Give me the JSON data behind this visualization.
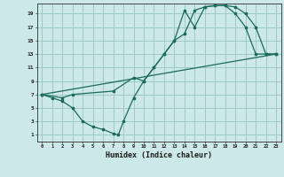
{
  "xlabel": "Humidex (Indice chaleur)",
  "bg_color": "#cce8e8",
  "grid_color": "#9ec8c8",
  "line_color": "#1a6b5a",
  "xlim": [
    -0.5,
    23.5
  ],
  "ylim": [
    0,
    20.5
  ],
  "xticks": [
    0,
    1,
    2,
    3,
    4,
    5,
    6,
    7,
    8,
    9,
    10,
    11,
    12,
    13,
    14,
    15,
    16,
    17,
    18,
    19,
    20,
    21,
    22,
    23
  ],
  "yticks": [
    1,
    3,
    5,
    7,
    9,
    11,
    13,
    15,
    17,
    19
  ],
  "line1_x": [
    0,
    1,
    2,
    3,
    4,
    5,
    6,
    7,
    7.5,
    8,
    9,
    10,
    11,
    12,
    13,
    14,
    15,
    16,
    17,
    18,
    19,
    20,
    21,
    22,
    23
  ],
  "line1_y": [
    7,
    6.5,
    6,
    5,
    3,
    2.2,
    1.8,
    1.2,
    1.0,
    3.0,
    6.5,
    9,
    11,
    13,
    15,
    19.5,
    17,
    20,
    20.2,
    20.2,
    19,
    17,
    13,
    13,
    13
  ],
  "line2_x": [
    0,
    2,
    3,
    7,
    9,
    10,
    11,
    12,
    13,
    14,
    15,
    16,
    17,
    18,
    19,
    20,
    21,
    22,
    23
  ],
  "line2_y": [
    7,
    6.5,
    7,
    7.5,
    9.5,
    9,
    11,
    13,
    15,
    16,
    19.5,
    20,
    20.2,
    20.2,
    20,
    19,
    17,
    13,
    13
  ],
  "line3_x": [
    0,
    23
  ],
  "line3_y": [
    7,
    13
  ]
}
